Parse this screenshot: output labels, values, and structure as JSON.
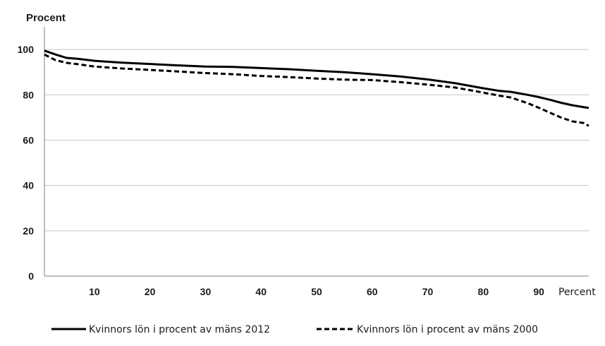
{
  "chart_data": {
    "type": "line",
    "ylabel": "Procent",
    "xlabel": "Percent",
    "ylim": [
      0,
      110
    ],
    "xlim": [
      1,
      99
    ],
    "y_ticks": [
      0,
      20,
      40,
      60,
      80,
      100
    ],
    "x_ticks": [
      10,
      20,
      30,
      40,
      50,
      60,
      70,
      80,
      90
    ],
    "grid": "horizontal",
    "legend_position": "bottom",
    "x": [
      1,
      3,
      5,
      7,
      10,
      15,
      20,
      25,
      30,
      35,
      40,
      45,
      50,
      55,
      60,
      65,
      70,
      75,
      80,
      83,
      85,
      88,
      90,
      92,
      94,
      96,
      98,
      99
    ],
    "series": [
      {
        "name": "Kvinnors lön i procent av mäns 2012",
        "style": "solid",
        "color": "#000000",
        "values": [
          99.5,
          97.8,
          96.3,
          95.9,
          95.0,
          94.2,
          93.6,
          93.0,
          92.5,
          92.3,
          91.8,
          91.3,
          90.6,
          90.0,
          89.1,
          88.1,
          86.8,
          85.1,
          82.9,
          81.7,
          81.3,
          80.0,
          79.0,
          77.8,
          76.5,
          75.4,
          74.6,
          74.2
        ]
      },
      {
        "name": "Kvinnors lön i procent av mäns 2000",
        "style": "dashed",
        "color": "#000000",
        "values": [
          97.8,
          95.3,
          94.1,
          93.5,
          92.5,
          91.6,
          91.0,
          90.3,
          89.6,
          89.1,
          88.3,
          87.8,
          87.2,
          86.7,
          86.5,
          85.6,
          84.5,
          83.2,
          81.0,
          79.6,
          78.8,
          76.3,
          74.3,
          72.1,
          70.0,
          68.3,
          67.6,
          66.3
        ]
      }
    ]
  }
}
